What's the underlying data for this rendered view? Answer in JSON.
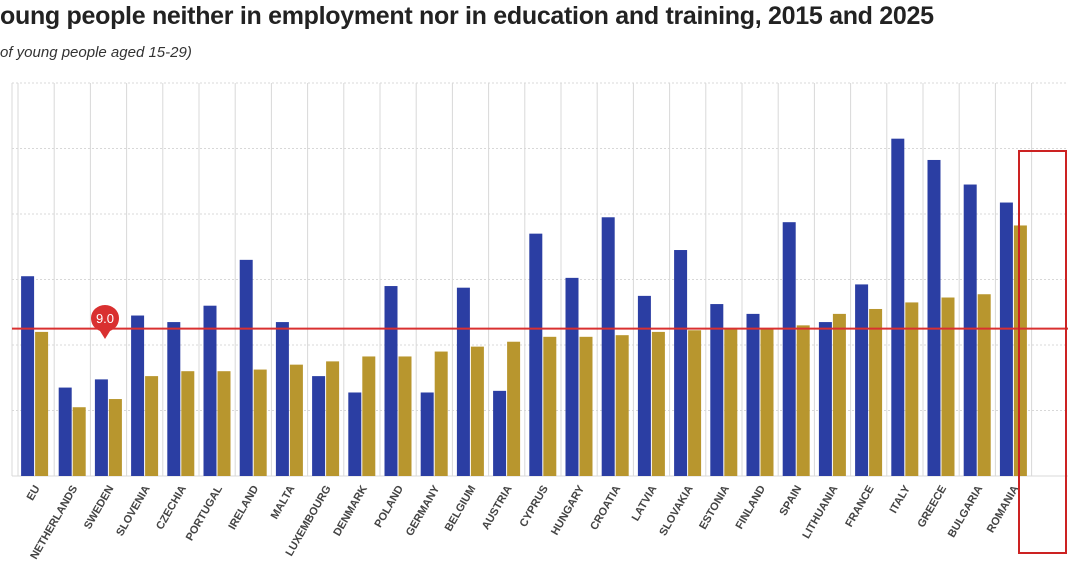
{
  "title": "oung people neither in employment nor in education and training, 2015 and 2025",
  "subtitle": "of young people aged 15-29)",
  "colors": {
    "series_2015": "#2b3ea3",
    "series_2025": "#b8962e",
    "reference_line": "#d93030",
    "highlight_box": "#cc2222",
    "grid": "#d8d8d8"
  },
  "chart_data": {
    "type": "bar",
    "title": "oung people neither in employment nor in education and training, 2015 and 2025",
    "subtitle": "of young people aged 15-29)",
    "xlabel": "",
    "ylabel": "",
    "ylim": [
      0,
      24
    ],
    "grid": true,
    "categories": [
      "EU",
      "NETHERLANDS",
      "SWEDEN",
      "SLOVENIA",
      "CZECHIA",
      "PORTUGAL",
      "IRELAND",
      "MALTA",
      "LUXEMBOURG",
      "DENMARK",
      "POLAND",
      "GERMANY",
      "BELGIUM",
      "AUSTRIA",
      "CYPRUS",
      "HUNGARY",
      "CROATIA",
      "LATVIA",
      "SLOVAKIA",
      "ESTONIA",
      "FINLAND",
      "SPAIN",
      "LITHUANIA",
      "FRANCE",
      "ITALY",
      "GREECE",
      "BULGARIA",
      "ROMANIA"
    ],
    "series": [
      {
        "values": [
          12.2,
          5.4,
          5.9,
          9.8,
          9.4,
          10.4,
          13.2,
          9.4,
          6.1,
          5.1,
          11.6,
          5.1,
          11.5,
          5.2,
          14.8,
          12.1,
          15.8,
          11.0,
          13.8,
          10.5,
          9.9,
          15.5,
          9.4,
          11.7,
          20.6,
          19.3,
          17.8,
          16.7
        ]
      },
      {
        "values": [
          8.8,
          4.2,
          4.7,
          6.1,
          6.4,
          6.4,
          6.5,
          6.8,
          7.0,
          7.3,
          7.3,
          7.6,
          7.9,
          8.2,
          8.5,
          8.5,
          8.6,
          8.8,
          8.9,
          9.0,
          9.0,
          9.2,
          9.9,
          10.2,
          10.6,
          10.9,
          11.1,
          15.3
        ]
      }
    ],
    "reference_line": {
      "value": 9.0,
      "label": "9.0"
    },
    "highlight": "ROMANIA"
  }
}
